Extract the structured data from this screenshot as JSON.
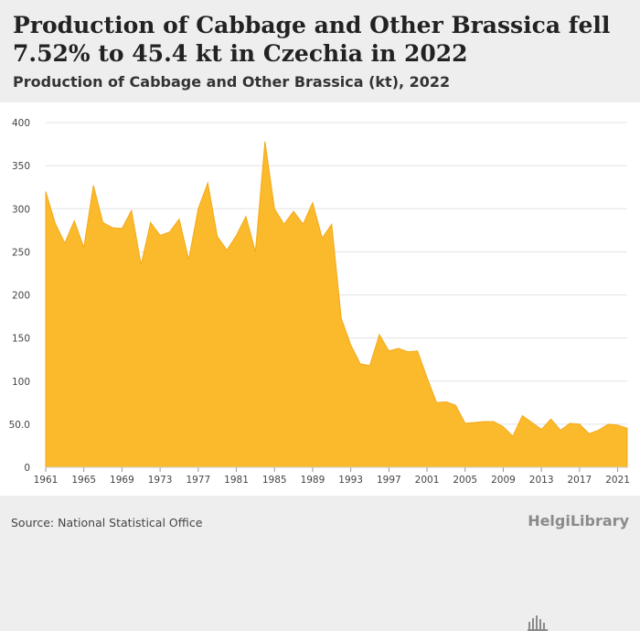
{
  "header": {
    "title": "Production of Cabbage and Other Brassica fell 7.52% to 45.4 kt in Czechia in 2022",
    "subtitle": "Production of Cabbage and Other Brassica (kt), 2022"
  },
  "footer": {
    "source": "Source: National Statistical Office",
    "logo_text": "HelgiLibrary"
  },
  "colors": {
    "area_fill": "#fbb92c",
    "area_stroke": "#f4a91a",
    "grid": "#e3e3e3",
    "text": "#444444"
  },
  "chart_data": {
    "type": "area",
    "title": "Production of Cabbage and Other Brassica (kt), 2022",
    "xlabel": "",
    "ylabel": "",
    "ylim": [
      0,
      400
    ],
    "grid": true,
    "y_ticks": [
      "0",
      "50.0",
      "100",
      "150",
      "200",
      "250",
      "300",
      "350",
      "400"
    ],
    "x_tick_labels": [
      "1961",
      "1965",
      "1969",
      "1973",
      "1977",
      "1981",
      "1985",
      "1989",
      "1993",
      "1997",
      "2001",
      "2005",
      "2009",
      "2013",
      "2017",
      "2021"
    ],
    "x": [
      1961,
      1962,
      1963,
      1964,
      1965,
      1966,
      1967,
      1968,
      1969,
      1970,
      1971,
      1972,
      1973,
      1974,
      1975,
      1976,
      1977,
      1978,
      1979,
      1980,
      1981,
      1982,
      1983,
      1984,
      1985,
      1986,
      1987,
      1988,
      1989,
      1990,
      1991,
      1992,
      1993,
      1994,
      1995,
      1996,
      1997,
      1998,
      1999,
      2000,
      2001,
      2002,
      2003,
      2004,
      2005,
      2006,
      2007,
      2008,
      2009,
      2010,
      2011,
      2012,
      2013,
      2014,
      2015,
      2016,
      2017,
      2018,
      2019,
      2020,
      2021,
      2022
    ],
    "values": [
      320,
      283,
      260,
      286,
      255,
      327,
      284,
      278,
      277,
      298,
      235,
      284,
      269,
      273,
      288,
      241,
      300,
      330,
      268,
      252,
      269,
      291,
      250,
      378,
      300,
      282,
      297,
      282,
      307,
      266,
      282,
      173,
      142,
      120,
      118,
      154,
      135,
      138,
      134,
      135,
      104,
      75,
      76,
      72,
      51,
      52,
      53,
      53,
      47,
      36,
      60,
      52,
      44,
      56,
      43,
      51,
      50,
      39,
      43,
      50,
      49,
      45.4
    ]
  }
}
